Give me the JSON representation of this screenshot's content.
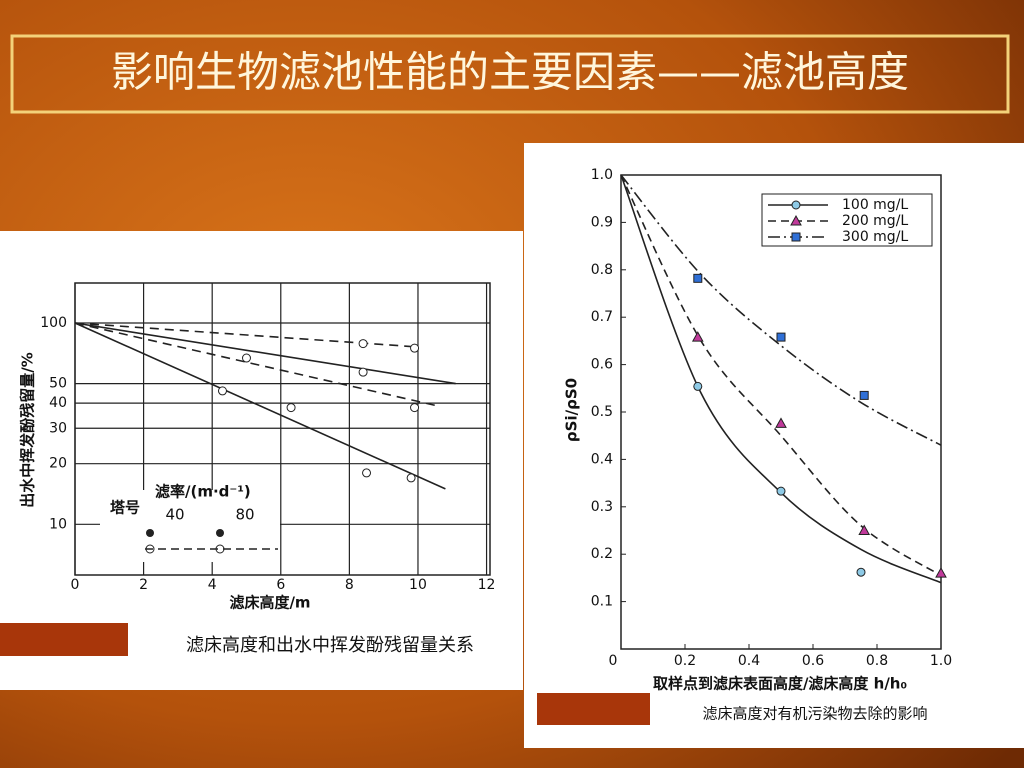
{
  "title": "影响生物滤池性能的主要因素——滤池高度",
  "chart_data": [
    {
      "type": "line",
      "log_y": true,
      "grid": true,
      "color": "#222222",
      "x_label": "滤床高度/m",
      "y_label": "出水中挥发酚残留量/%",
      "caption": "滤床高度和出水中挥发酚残留量关系",
      "legend": {
        "title": "塔号",
        "rate_label": "滤率/(m·d⁻¹)",
        "rates": [
          "40",
          "80"
        ]
      },
      "xlim": [
        0,
        12.1
      ],
      "xticks": [
        0,
        2,
        4,
        6,
        8,
        10,
        12
      ],
      "ylim": [
        5.6,
        158
      ],
      "yticks": [
        10,
        20,
        30,
        40,
        50,
        100
      ],
      "series": [
        {
          "dash": false,
          "x": [
            4.3,
            6.3,
            8.5,
            9.8
          ],
          "values": [
            46,
            38,
            18,
            17
          ],
          "fit_x": [
            0,
            10.8
          ],
          "fit_values": [
            100,
            15
          ]
        },
        {
          "dash": false,
          "x": [
            5.0
          ],
          "values": [
            67
          ],
          "fit_x": [
            0,
            11.1
          ],
          "fit_values": [
            100,
            50
          ]
        },
        {
          "dash": true,
          "x": [
            8.4,
            9.9
          ],
          "values": [
            57,
            38
          ],
          "fit_x": [
            0,
            10.5
          ],
          "fit_values": [
            100,
            39
          ]
        },
        {
          "dash": true,
          "x": [
            8.4,
            9.9
          ],
          "values": [
            79,
            75
          ],
          "fit_x": [
            0,
            10
          ],
          "fit_values": [
            100,
            76
          ]
        }
      ]
    },
    {
      "type": "line",
      "log_y": false,
      "smooth": true,
      "grid": false,
      "x_label": "取样点到滤床表面高度/滤床高度 h/h₀",
      "y_label": "ρSi/ρS0",
      "caption": "滤床高度对有机污染物去除的影响",
      "xlim": [
        0,
        1.0
      ],
      "xticks": [
        0,
        0.2,
        0.4,
        0.6,
        0.8,
        {
          "value": 1,
          "label": "1.0"
        }
      ],
      "ylim": [
        0,
        1.0
      ],
      "yticks": [
        0.1,
        0.2,
        0.3,
        0.4,
        0.5,
        0.6,
        0.7,
        0.8,
        0.9,
        {
          "value": 1,
          "label": "1.0"
        }
      ],
      "series": [
        {
          "name": "100 mg/L",
          "marker": "circle",
          "color": "#8ecae6",
          "dash": "none",
          "x": [
            0.24,
            0.5,
            0.75
          ],
          "values": [
            0.554,
            0.333,
            0.162
          ],
          "fit_x": [
            0,
            0.25,
            0.5,
            0.75,
            1.0
          ],
          "fit_values": [
            1.0,
            0.54,
            0.33,
            0.21,
            0.14
          ]
        },
        {
          "name": "200 mg/L",
          "marker": "triangle",
          "color": "#c0399a",
          "dash": "dashed",
          "x": [
            0.24,
            0.5,
            0.76,
            1.0
          ],
          "values": [
            0.658,
            0.476,
            0.25,
            0.16
          ],
          "fit_x": [
            0,
            0.25,
            0.5,
            0.75,
            1.0
          ],
          "fit_values": [
            1.0,
            0.65,
            0.45,
            0.26,
            0.155
          ]
        },
        {
          "name": "300 mg/L",
          "marker": "square",
          "color": "#2f6fd6",
          "dash": "dashdot",
          "x": [
            0.24,
            0.5,
            0.76
          ],
          "values": [
            0.782,
            0.658,
            0.535
          ],
          "fit_x": [
            0,
            0.25,
            0.5,
            0.75,
            1.0
          ],
          "fit_values": [
            1.0,
            0.79,
            0.64,
            0.52,
            0.43
          ]
        }
      ]
    }
  ]
}
